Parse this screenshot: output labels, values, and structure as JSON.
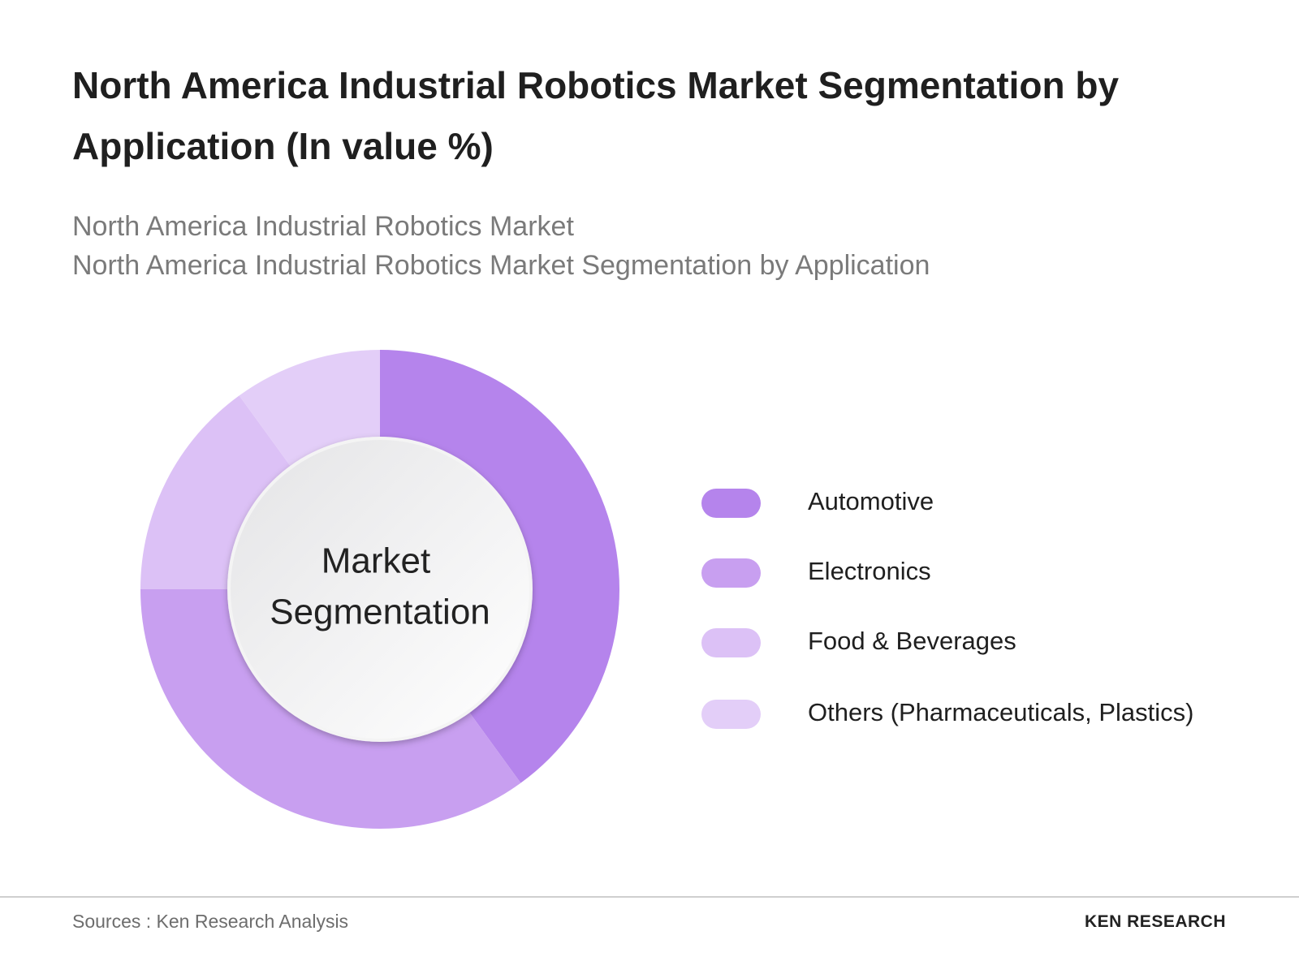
{
  "chart_data": {
    "type": "donut",
    "title": "North America Industrial Robotics Market Segmentation by Application (In value %)",
    "subtitles": [
      "North America Industrial Robotics Market",
      "North America Industrial Robotics Market Segmentation by Application"
    ],
    "center_label": [
      "Market",
      "Segmentation"
    ],
    "categories": [
      "Automotive",
      "Electronics",
      "Food & Beverages",
      "Others (Pharmaceuticals, Plastics)"
    ],
    "values": [
      40,
      35,
      15,
      10
    ],
    "colors": [
      "#b584ec",
      "#c89ff0",
      "#dcc1f6",
      "#e3cef8"
    ]
  },
  "footer": {
    "source": "Sources : Ken Research Analysis",
    "logo": "KEN RESEARCH"
  }
}
